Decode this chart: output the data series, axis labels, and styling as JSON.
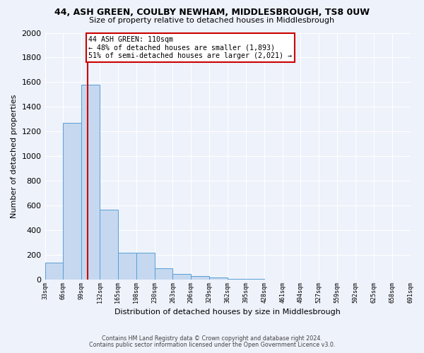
{
  "title": "44, ASH GREEN, COULBY NEWHAM, MIDDLESBROUGH, TS8 0UW",
  "subtitle": "Size of property relative to detached houses in Middlesbrough",
  "xlabel": "Distribution of detached houses by size in Middlesbrough",
  "ylabel": "Number of detached properties",
  "bar_color": "#c5d8f0",
  "bar_edge_color": "#5a9fd4",
  "background_color": "#eef2fb",
  "annotation_text": "44 ASH GREEN: 110sqm\n← 48% of detached houses are smaller (1,893)\n51% of semi-detached houses are larger (2,021) →",
  "annotation_box_color": "#ffffff",
  "annotation_border_color": "#cc0000",
  "marker_line_color": "#cc0000",
  "footnote1": "Contains HM Land Registry data © Crown copyright and database right 2024.",
  "footnote2": "Contains public sector information licensed under the Open Government Licence v3.0.",
  "bin_labels": [
    "33sqm",
    "66sqm",
    "99sqm",
    "132sqm",
    "165sqm",
    "198sqm",
    "230sqm",
    "263sqm",
    "296sqm",
    "329sqm",
    "362sqm",
    "395sqm",
    "428sqm",
    "461sqm",
    "494sqm",
    "527sqm",
    "559sqm",
    "592sqm",
    "625sqm",
    "658sqm",
    "691sqm"
  ],
  "bar_heights": [
    140,
    1270,
    1580,
    570,
    220,
    220,
    95,
    50,
    30,
    20,
    10,
    10,
    0,
    0,
    0,
    0,
    0,
    0,
    0,
    0
  ],
  "num_bars": 20,
  "marker_bar_index": 2.33,
  "ylim": [
    0,
    2000
  ],
  "yticks": [
    0,
    200,
    400,
    600,
    800,
    1000,
    1200,
    1400,
    1600,
    1800,
    2000
  ]
}
